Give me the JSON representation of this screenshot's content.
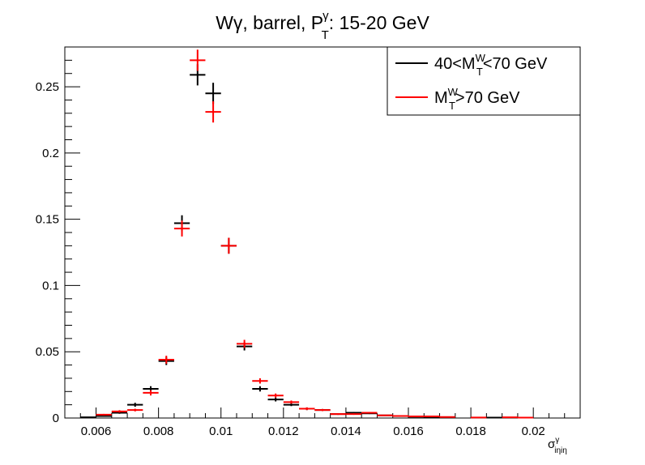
{
  "chart_data": {
    "type": "scatter",
    "title": {
      "main": "Wγ,  barrel,  P",
      "sup": "γ",
      "sub": "T",
      "tail": ": 15-20 GeV"
    },
    "xlabel": {
      "main": "σ",
      "sup": "γ",
      "sub": "iηiη"
    },
    "ylabel": "",
    "xlim": [
      0.005,
      0.0215
    ],
    "ylim": [
      0,
      0.28
    ],
    "bin_width": 0.0005,
    "x_ticks": [
      0.006,
      0.008,
      0.01,
      0.012,
      0.014,
      0.016,
      0.018,
      0.02
    ],
    "x_tick_labels": [
      "0.006",
      "0.008",
      "0.01",
      "0.012",
      "0.014",
      "0.016",
      "0.018",
      "0.02"
    ],
    "y_ticks": [
      0,
      0.05,
      0.1,
      0.15,
      0.2,
      0.25
    ],
    "y_tick_labels": [
      "0",
      "0.05",
      "0.1",
      "0.15",
      "0.2",
      "0.25"
    ],
    "grid": false,
    "legend_position": "top-right",
    "legend": [
      {
        "pre": "40<M",
        "sup": "W",
        "sub": "T",
        "post": "<70 GeV",
        "color": "#000000"
      },
      {
        "pre": "M",
        "sup": "W",
        "sub": "T",
        "post": ">70 GeV",
        "color": "#ff0000"
      }
    ],
    "series": [
      {
        "color": "#000000",
        "points": [
          {
            "x": 0.00575,
            "y": 0.0005,
            "err": 0.0003
          },
          {
            "x": 0.00625,
            "y": 0.0015,
            "err": 0.0005
          },
          {
            "x": 0.00675,
            "y": 0.004,
            "err": 0.0008
          },
          {
            "x": 0.00725,
            "y": 0.01,
            "err": 0.0015
          },
          {
            "x": 0.00775,
            "y": 0.022,
            "err": 0.002
          },
          {
            "x": 0.00825,
            "y": 0.043,
            "err": 0.003
          },
          {
            "x": 0.00875,
            "y": 0.147,
            "err": 0.006
          },
          {
            "x": 0.00925,
            "y": 0.259,
            "err": 0.008
          },
          {
            "x": 0.00975,
            "y": 0.245,
            "err": 0.008
          },
          {
            "x": 0.01025,
            "y": 0.13,
            "err": 0.006
          },
          {
            "x": 0.01075,
            "y": 0.054,
            "err": 0.003
          },
          {
            "x": 0.01125,
            "y": 0.022,
            "err": 0.002
          },
          {
            "x": 0.01175,
            "y": 0.014,
            "err": 0.0015
          },
          {
            "x": 0.01225,
            "y": 0.01,
            "err": 0.001
          },
          {
            "x": 0.01275,
            "y": 0.007,
            "err": 0.001
          },
          {
            "x": 0.01325,
            "y": 0.006,
            "err": 0.0008
          },
          {
            "x": 0.01375,
            "y": 0.003,
            "err": 0.0006
          },
          {
            "x": 0.01425,
            "y": 0.004,
            "err": 0.0006
          },
          {
            "x": 0.01475,
            "y": 0.0035,
            "err": 0.0005
          },
          {
            "x": 0.01525,
            "y": 0.002,
            "err": 0.0004
          },
          {
            "x": 0.01575,
            "y": 0.0015,
            "err": 0.0004
          },
          {
            "x": 0.01625,
            "y": 0.001,
            "err": 0.0003
          },
          {
            "x": 0.01675,
            "y": 0.0008,
            "err": 0.0003
          },
          {
            "x": 0.01725,
            "y": 0.0005,
            "err": 0.0002
          },
          {
            "x": 0.01875,
            "y": 0.0003,
            "err": 0.0002
          },
          {
            "x": 0.01975,
            "y": 0.0003,
            "err": 0.0002
          }
        ]
      },
      {
        "color": "#ff0000",
        "points": [
          {
            "x": 0.00625,
            "y": 0.0025,
            "err": 0.0006
          },
          {
            "x": 0.00675,
            "y": 0.005,
            "err": 0.0009
          },
          {
            "x": 0.00725,
            "y": 0.006,
            "err": 0.001
          },
          {
            "x": 0.00775,
            "y": 0.019,
            "err": 0.002
          },
          {
            "x": 0.00825,
            "y": 0.044,
            "err": 0.003
          },
          {
            "x": 0.00875,
            "y": 0.143,
            "err": 0.006
          },
          {
            "x": 0.00925,
            "y": 0.27,
            "err": 0.008
          },
          {
            "x": 0.00975,
            "y": 0.231,
            "err": 0.008
          },
          {
            "x": 0.01025,
            "y": 0.13,
            "err": 0.006
          },
          {
            "x": 0.01075,
            "y": 0.056,
            "err": 0.003
          },
          {
            "x": 0.01125,
            "y": 0.028,
            "err": 0.002
          },
          {
            "x": 0.01175,
            "y": 0.017,
            "err": 0.0015
          },
          {
            "x": 0.01225,
            "y": 0.012,
            "err": 0.0012
          },
          {
            "x": 0.01275,
            "y": 0.007,
            "err": 0.001
          },
          {
            "x": 0.01325,
            "y": 0.006,
            "err": 0.0008
          },
          {
            "x": 0.01375,
            "y": 0.003,
            "err": 0.0006
          },
          {
            "x": 0.01425,
            "y": 0.003,
            "err": 0.0006
          },
          {
            "x": 0.01475,
            "y": 0.004,
            "err": 0.0006
          },
          {
            "x": 0.01525,
            "y": 0.002,
            "err": 0.0004
          },
          {
            "x": 0.01575,
            "y": 0.0015,
            "err": 0.0004
          },
          {
            "x": 0.01625,
            "y": 0.0012,
            "err": 0.0003
          },
          {
            "x": 0.01675,
            "y": 0.0012,
            "err": 0.0003
          },
          {
            "x": 0.01725,
            "y": 0.0008,
            "err": 0.0003
          },
          {
            "x": 0.01825,
            "y": 0.0004,
            "err": 0.0002
          },
          {
            "x": 0.01925,
            "y": 0.0005,
            "err": 0.0002
          },
          {
            "x": 0.01975,
            "y": 0.0003,
            "err": 0.0002
          }
        ]
      }
    ]
  }
}
